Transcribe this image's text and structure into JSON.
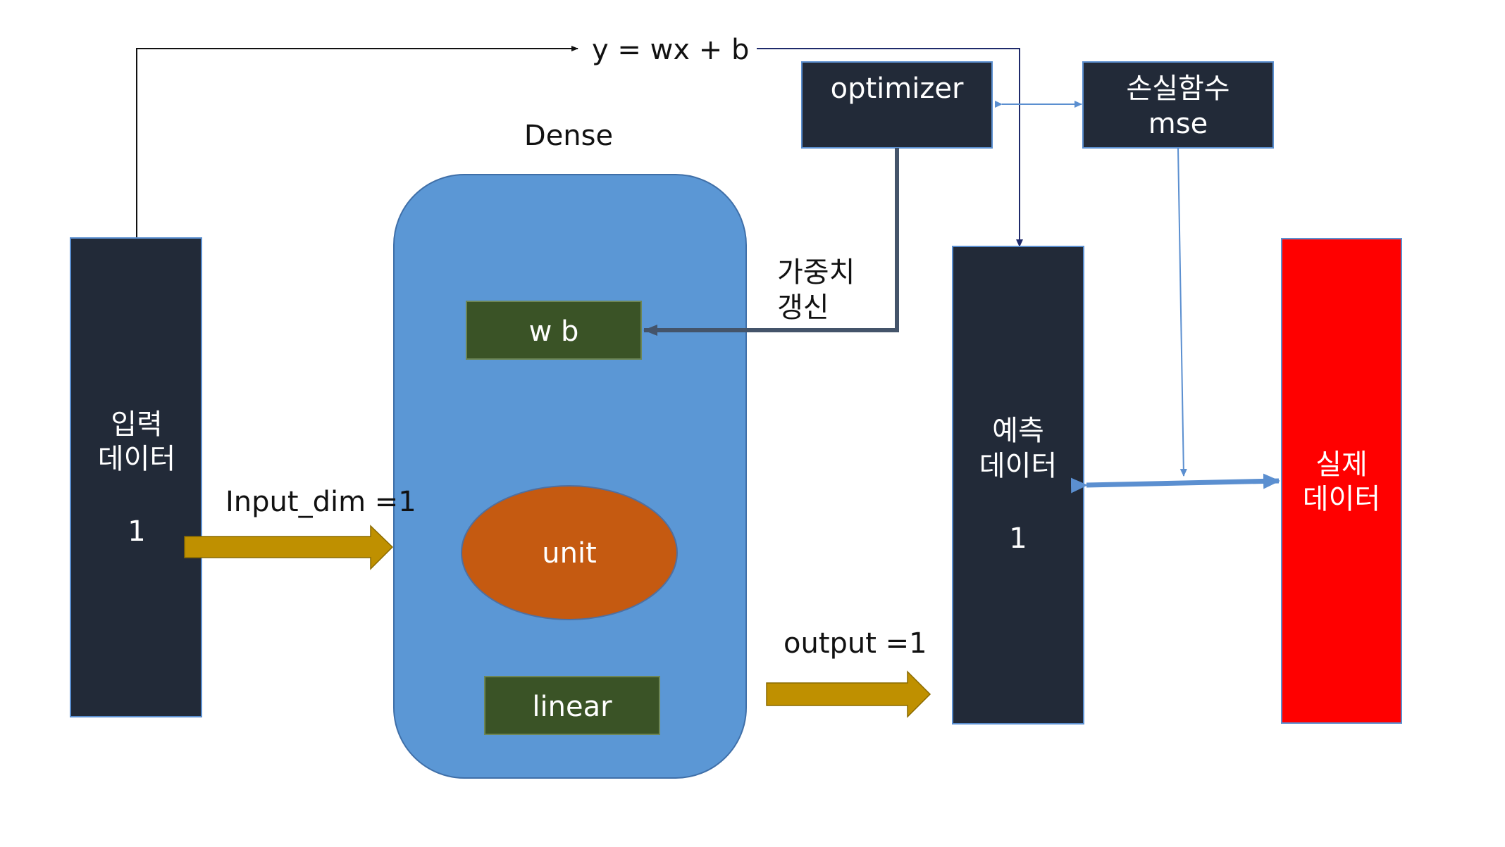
{
  "formula": "y  =  wx  +  b",
  "dense": {
    "title": "Dense"
  },
  "weights": {
    "label": "w b"
  },
  "unit": {
    "label": "unit"
  },
  "activation": {
    "label": "linear"
  },
  "optimizer": {
    "label": "optimizer"
  },
  "loss": {
    "title": "손실함수",
    "name": "mse"
  },
  "update_label": {
    "line1": "가중치",
    "line2": "갱신"
  },
  "input_block": {
    "line1": "입력",
    "line2": "데이터",
    "value": "1"
  },
  "input_dim_label": "Input_dim =1",
  "output_label": "output =1",
  "prediction_block": {
    "line1": "예측",
    "line2": "데이터",
    "value": "1"
  },
  "actual_block": {
    "line1": "실제",
    "line2": "데이터"
  },
  "colors": {
    "dark_block": "#222a38",
    "dense_fill": "#5b97d5",
    "green_box": "#3a5326",
    "unit_fill": "#c55a11",
    "arrow_gold": "#bf9000",
    "actual_red": "#ff0000",
    "link_blue": "#5b8fd0"
  }
}
